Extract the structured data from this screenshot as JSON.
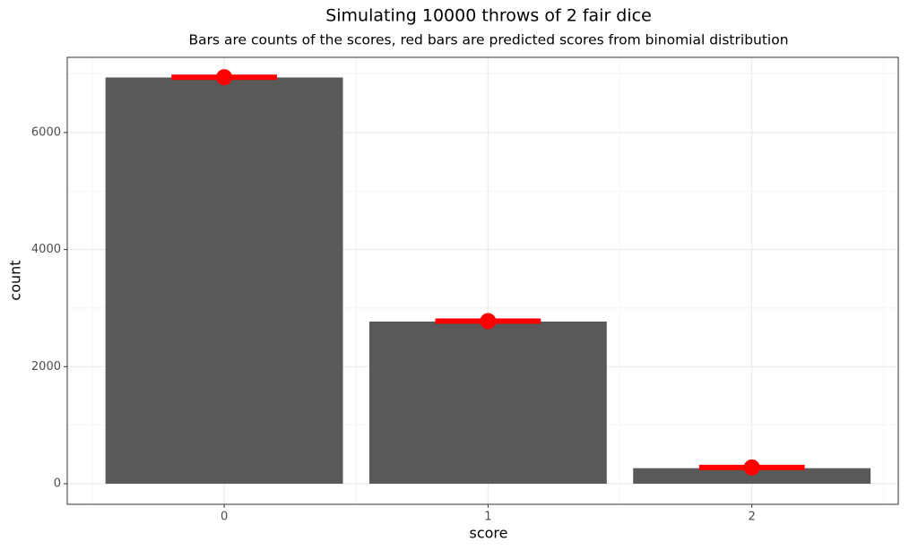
{
  "chart_data": {
    "type": "bar",
    "title": "Simulating 10000 throws of 2 fair dice",
    "subtitle": "Bars are counts of the scores, red bars are predicted scores from binomial distribution",
    "x_label": "score",
    "y_label": "count",
    "x": [
      0,
      1,
      2
    ],
    "values": [
      6940,
      2770,
      265
    ],
    "color": "#595959",
    "predicted": {
      "values": [
        6944,
        2778,
        278
      ],
      "color": "#ff0000"
    },
    "xlim": [
      -0.595,
      2.555
    ],
    "xticks": [
      0,
      1,
      2
    ],
    "xminor": [
      -0.5,
      0.5,
      1.5,
      2.5
    ],
    "ylim": [
      -352,
      7284
    ],
    "yticks": [
      0,
      2000,
      4000,
      6000
    ],
    "yminor": [
      1000,
      3000,
      5000,
      7000
    ],
    "grid": true
  }
}
